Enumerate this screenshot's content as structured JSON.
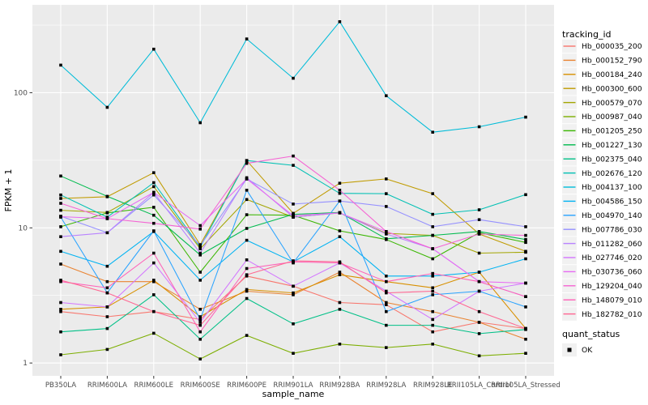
{
  "chart_data": {
    "type": "line",
    "title": "",
    "xlabel": "sample_name",
    "ylabel": "FPKM + 1",
    "y_scale": "log10",
    "y_ticks": [
      1,
      10,
      100
    ],
    "y_minor_ticks": [
      3.162,
      31.62,
      316.2
    ],
    "ylim_log10": [
      -0.095,
      2.65
    ],
    "grid": true,
    "panel_bg": "#EBEBEB",
    "grid_color": "#FFFFFF",
    "tick_label_color": "#4D4D4D",
    "axis_title_color": "#000000",
    "point_marker": "black-square",
    "point_color": "#000000",
    "legend_position": "right",
    "categories": [
      "PB350LA",
      "RRIM600LA",
      "RRIM600LE",
      "RRIM600SE",
      "RRIM600PE",
      "RRIM901LA",
      "RRIM928BA",
      "RRIM928LA",
      "RRIM928LE",
      "RRII105LA_Control",
      "RRII105LA_Stressed"
    ],
    "series": [
      {
        "name": "Hb_000035_200",
        "color": "#F8766D",
        "values": [
          2.4,
          2.2,
          2.4,
          2.1,
          4.4,
          3.7,
          2.8,
          2.7,
          1.7,
          2.0,
          1.8
        ]
      },
      {
        "name": "Hb_000152_790",
        "color": "#EA8331",
        "values": [
          5.4,
          4.0,
          4.0,
          2.5,
          3.4,
          3.2,
          4.7,
          2.8,
          2.4,
          2.0,
          1.5
        ]
      },
      {
        "name": "Hb_000184_240",
        "color": "#D89000",
        "values": [
          2.5,
          2.6,
          4.1,
          2.2,
          3.5,
          3.3,
          4.5,
          4.0,
          3.6,
          4.7,
          1.8
        ]
      },
      {
        "name": "Hb_000300_600",
        "color": "#C09B00",
        "values": [
          16.5,
          17.0,
          25.6,
          7.5,
          31.5,
          12.8,
          21.4,
          23.0,
          17.9,
          9.0,
          6.7
        ]
      },
      {
        "name": "Hb_000579_070",
        "color": "#A3A500",
        "values": [
          13.5,
          13.0,
          20.2,
          7.0,
          16.2,
          12.0,
          12.9,
          9.1,
          8.8,
          6.5,
          6.6
        ]
      },
      {
        "name": "Hb_000987_040",
        "color": "#7CAE00",
        "values": [
          1.15,
          1.26,
          1.66,
          1.07,
          1.6,
          1.18,
          1.38,
          1.3,
          1.38,
          1.13,
          1.18
        ]
      },
      {
        "name": "Hb_001205_250",
        "color": "#39B600",
        "values": [
          10.2,
          12.9,
          14.2,
          4.7,
          12.5,
          12.4,
          9.5,
          8.2,
          5.9,
          9.2,
          7.8
        ]
      },
      {
        "name": "Hb_001227_130",
        "color": "#00BB4E",
        "values": [
          24.2,
          17.1,
          12.4,
          6.3,
          9.9,
          12.6,
          13.0,
          8.3,
          8.8,
          9.4,
          8.2
        ]
      },
      {
        "name": "Hb_002375_040",
        "color": "#00C087",
        "values": [
          1.7,
          1.8,
          3.2,
          1.5,
          3.0,
          1.95,
          2.5,
          1.9,
          1.9,
          1.65,
          1.77
        ]
      },
      {
        "name": "Hb_002676_120",
        "color": "#00C0B4",
        "values": [
          17.5,
          12.0,
          21.6,
          7.2,
          31.5,
          29.0,
          18.0,
          17.9,
          12.6,
          13.6,
          17.6
        ]
      },
      {
        "name": "Hb_004137_100",
        "color": "#00BCD8",
        "values": [
          160,
          78,
          210,
          60,
          250,
          128,
          335,
          95,
          51,
          56,
          66
        ]
      },
      {
        "name": "Hb_004586_150",
        "color": "#00B3F2",
        "values": [
          6.7,
          5.2,
          9.4,
          4.1,
          8.1,
          5.6,
          8.6,
          4.4,
          4.4,
          4.7,
          5.9
        ]
      },
      {
        "name": "Hb_004970_140",
        "color": "#29A3FF",
        "values": [
          12.0,
          3.3,
          9.5,
          2.1,
          19.0,
          5.5,
          15.8,
          2.4,
          3.2,
          3.4,
          2.6
        ]
      },
      {
        "name": "Hb_007786_030",
        "color": "#9590FF",
        "values": [
          12.2,
          9.2,
          17.5,
          7.4,
          23.0,
          15.0,
          15.8,
          14.4,
          10.2,
          11.5,
          10.2
        ]
      },
      {
        "name": "Hb_011282_060",
        "color": "#B983FF",
        "values": [
          8.6,
          9.2,
          18.3,
          6.5,
          23.5,
          12.0,
          12.9,
          9.0,
          7.0,
          4.0,
          3.1
        ]
      },
      {
        "name": "Hb_027746_020",
        "color": "#D376FF",
        "values": [
          2.8,
          2.6,
          5.5,
          2.0,
          5.8,
          3.7,
          5.5,
          3.4,
          2.1,
          3.4,
          3.9
        ]
      },
      {
        "name": "Hb_030736_060",
        "color": "#E76BF3",
        "values": [
          12.1,
          11.7,
          18.3,
          10.4,
          23.0,
          12.3,
          12.9,
          9.4,
          7.0,
          4.0,
          3.9
        ]
      },
      {
        "name": "Hb_129204_040",
        "color": "#F564D4",
        "values": [
          15.2,
          11.7,
          10.8,
          9.8,
          30.0,
          34.0,
          19.0,
          9.4,
          7.0,
          9.0,
          8.8
        ]
      },
      {
        "name": "Hb_148079_010",
        "color": "#FF61B8",
        "values": [
          4.0,
          3.6,
          6.5,
          1.7,
          5.0,
          5.6,
          5.5,
          4.0,
          4.6,
          4.0,
          3.1
        ]
      },
      {
        "name": "Hb_182782_010",
        "color": "#FF6692",
        "values": [
          4.1,
          3.3,
          2.4,
          1.9,
          4.5,
          5.7,
          5.6,
          3.3,
          3.4,
          2.4,
          1.8
        ]
      }
    ],
    "legend": {
      "tracking_title": "tracking_id",
      "quant_title": "quant_status",
      "quant_items": [
        {
          "label": "OK",
          "marker": "black-square"
        }
      ],
      "key_bg": "#F1F1F1"
    }
  }
}
